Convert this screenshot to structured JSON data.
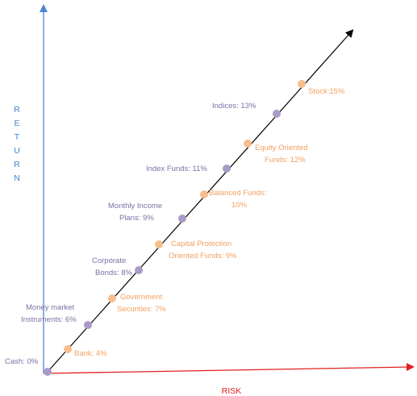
{
  "axes": {
    "y_title_letters": [
      "R",
      "E",
      "T",
      "U",
      "R",
      "N"
    ],
    "x_title": "RISK",
    "y_color": "#4a86d4",
    "x_color": "#e02020",
    "y_title_color": "#3f86c8",
    "x_title_color": "#e02020"
  },
  "trend_line_color": "#000000",
  "colors": {
    "orange_point": "#f6be8e",
    "purple_point": "#a99bc6",
    "orange_text": "#f0a060",
    "purple_text": "#7f6fa6"
  },
  "points": [
    {
      "id": "cash",
      "lines": [
        "Cash: 0%"
      ],
      "tone": "purple"
    },
    {
      "id": "bank",
      "lines": [
        "Bank: 4%"
      ],
      "tone": "orange"
    },
    {
      "id": "money-market",
      "lines": [
        "Money market",
        "Instruments: 6%"
      ],
      "tone": "purple"
    },
    {
      "id": "government-securities",
      "lines": [
        "Government",
        "Securities: 7%"
      ],
      "tone": "orange"
    },
    {
      "id": "corporate-bonds",
      "lines": [
        "Corporate",
        "Bonds: 8%"
      ],
      "tone": "purple"
    },
    {
      "id": "capital-protection",
      "lines": [
        "Capital Protection",
        "Oriented Funds: 9%"
      ],
      "tone": "orange"
    },
    {
      "id": "monthly-income",
      "lines": [
        "Monthly Income",
        "Plans: 9%"
      ],
      "tone": "purple"
    },
    {
      "id": "balanced-funds",
      "lines": [
        "Balanced Funds:",
        "10%"
      ],
      "tone": "orange"
    },
    {
      "id": "index-funds",
      "lines": [
        "Index Funds: 11%"
      ],
      "tone": "purple"
    },
    {
      "id": "equity-oriented",
      "lines": [
        "Equity Oriented",
        "Funds: 12%"
      ],
      "tone": "orange"
    },
    {
      "id": "indices",
      "lines": [
        "Indices: 13%"
      ],
      "tone": "purple"
    },
    {
      "id": "stock",
      "lines": [
        "Stock:15%"
      ],
      "tone": "orange"
    }
  ]
}
